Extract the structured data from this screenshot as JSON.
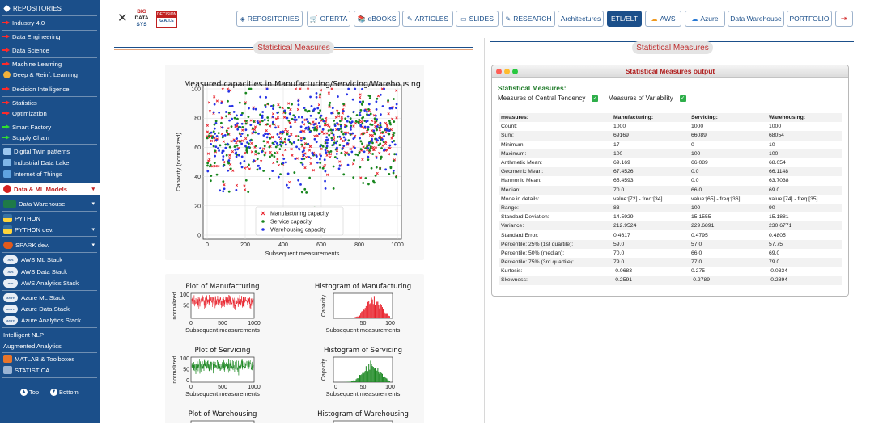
{
  "sidebar": {
    "header": "REPOSITORIES",
    "items": [
      {
        "label": "Industry 4.0",
        "icon": "red-arrow-icon"
      },
      {
        "label": "Data Engineering",
        "icon": "red-arrow-icon"
      },
      {
        "label": "Data Science",
        "icon": "red-arrow-icon"
      },
      {
        "label": "Machine Learning",
        "icon": "red-arrow-icon"
      },
      {
        "label": "Deep & Reinf. Learning",
        "icon": "brain-icon"
      },
      {
        "label": "Decision Intelligence",
        "icon": "red-arrow-icon"
      },
      {
        "label": "Statistics",
        "icon": "red-arrow-icon"
      },
      {
        "label": "Optimization",
        "icon": "red-arrow-icon"
      },
      {
        "label": "Smart Factory",
        "icon": "green-arrow-icon"
      },
      {
        "label": "Supply Chain",
        "icon": "green-arrow-icon"
      },
      {
        "label": "Digital Twin patterns",
        "icon": "twin-icon"
      },
      {
        "label": "Industrial Data Lake",
        "icon": "lake-icon"
      },
      {
        "label": "Internet of Things",
        "icon": "iot-icon"
      },
      {
        "label": "Data & ML Models",
        "icon": "models-icon"
      },
      {
        "label": "Data Warehouse",
        "icon": "warehouse-icon"
      },
      {
        "label": "PYTHON",
        "icon": "python-icon"
      },
      {
        "label": "PYTHON dev.",
        "icon": "python-icon"
      },
      {
        "label": "SPARK dev.",
        "icon": "spark-icon"
      },
      {
        "label": "AWS ML Stack",
        "icon": "aws-icon"
      },
      {
        "label": "AWS Data Stack",
        "icon": "aws-icon"
      },
      {
        "label": "AWS Analytics Stack",
        "icon": "aws-icon"
      },
      {
        "label": "Azure ML Stack",
        "icon": "azure-icon"
      },
      {
        "label": "Azure Data Stack",
        "icon": "azure-icon"
      },
      {
        "label": "Azure Analytics Stack",
        "icon": "azure-icon"
      },
      {
        "label": "Intelligent NLP",
        "icon": ""
      },
      {
        "label": "Augmented Analytics",
        "icon": ""
      },
      {
        "label": "MATLAB & Toolboxes",
        "icon": "matlab-icon"
      },
      {
        "label": "STATISTICA",
        "icon": "statistica-icon"
      }
    ],
    "top_label": "Top",
    "bottom_label": "Bottom",
    "aws_badge": "aws",
    "azure_badge": "azure"
  },
  "logo": {
    "big": "BIG",
    "data": "DATA",
    "sys": "SYS",
    "decision": "DECISION",
    "gate": "G.A.T.E"
  },
  "nav": [
    {
      "label": "REPOSITORIES",
      "icon": "diamond-icon"
    },
    {
      "label": "OFERTA",
      "icon": "cart-icon"
    },
    {
      "label": "eBOOKS",
      "icon": "book-icon"
    },
    {
      "label": "ARTICLES",
      "icon": "pen-icon"
    },
    {
      "label": "SLIDES",
      "icon": "screen-icon"
    },
    {
      "label": "RESEARCH",
      "icon": "pen-icon"
    },
    {
      "label": "Architectures",
      "icon": ""
    },
    {
      "label": "ETL/ELT",
      "icon": ""
    },
    {
      "label": "AWS",
      "icon": "aws-cloud-icon"
    },
    {
      "label": "Azure",
      "icon": "azure-cloud-icon"
    },
    {
      "label": "Data Warehouse",
      "icon": ""
    },
    {
      "label": "PORTFOLIO",
      "icon": ""
    },
    {
      "label": "",
      "icon": "logout-icon"
    }
  ],
  "section_title": "Statistical Measures",
  "output_title": "Statistical Measures output",
  "output": {
    "window_title": "Statistical Measures output",
    "heading": "Statistical Measures:",
    "cb1": "Measures of Central Tendency",
    "cb2": "Measures of Variability",
    "columns": [
      "measures:",
      "Manufacturing:",
      "Servicing:",
      "Warehousing:"
    ],
    "rows": [
      [
        "Count:",
        "1000",
        "1000",
        "1000"
      ],
      [
        "Sum:",
        "69169",
        "66089",
        "68054"
      ],
      [
        "Minimum:",
        "17",
        "0",
        "10"
      ],
      [
        "Maximum:",
        "100",
        "100",
        "100"
      ],
      [
        "Arithmetic Mean:",
        "69.169",
        "66.089",
        "68.054"
      ],
      [
        "Geometric Mean:",
        "67.4526",
        "0.0",
        "66.1148"
      ],
      [
        "Harmonic Mean:",
        "65.4593",
        "0.0",
        "63.7038"
      ],
      [
        "Median:",
        "70.0",
        "66.0",
        "69.0"
      ],
      [
        "Mode in details:",
        "value:[72] - freq:[34]",
        "value:[65] - freq:[36]",
        "value:[74] - freq:[35]"
      ],
      [
        "Range:",
        "83",
        "100",
        "90"
      ],
      [
        "Standard Deviation:",
        "14.5929",
        "15.1555",
        "15.1881"
      ],
      [
        "Variance:",
        "212.9524",
        "229.6891",
        "230.6771"
      ],
      [
        "Standard Error:",
        "0.4617",
        "0.4795",
        "0.4805"
      ],
      [
        "Percentile: 25% (1st quartile):",
        "59.0",
        "57.0",
        "57.75"
      ],
      [
        "Percentile: 50% (median):",
        "70.0",
        "66.0",
        "69.0"
      ],
      [
        "Percentile: 75% (3rd quartile):",
        "79.0",
        "77.0",
        "79.0"
      ],
      [
        "Kurtosis:",
        "-0.0683",
        "0.275",
        "-0.0334"
      ],
      [
        "Skewness:",
        "-0.2591",
        "-0.2789",
        "-0.2894"
      ]
    ]
  },
  "colors": {
    "sidebar": "#1b4f8a",
    "manufacturing": "#e8202a",
    "servicing": "#18861e",
    "warehousing": "#2632e6"
  },
  "chart_data": [
    {
      "type": "scatter",
      "title": "Measured capacities in Manufacturing/Servicing/Warehousing",
      "xlabel": "Subsequent measurements",
      "ylabel": "Capacity (normalized)",
      "xlim": [
        0,
        1000
      ],
      "ylim": [
        0,
        100
      ],
      "xticks": [
        "0",
        "200",
        "400",
        "600",
        "800",
        "1000"
      ],
      "yticks": [
        "0",
        "20",
        "40",
        "60",
        "80",
        "100"
      ],
      "legend_position": "lower-center",
      "series": [
        {
          "name": "Manufacturing capacity",
          "marker": "x",
          "count": 1000
        },
        {
          "name": "Service capacity",
          "marker": "dot",
          "count": 1000
        },
        {
          "name": "Warehousing capacity",
          "marker": "dot",
          "count": 1000
        }
      ],
      "grid": true
    },
    {
      "type": "line",
      "title": "Plot of Manufacturing",
      "xlabel": "Subsequent measurements",
      "ylabel": "normalized",
      "xticks": [
        "0",
        "500",
        "1000"
      ],
      "yticks": [
        "50",
        "100"
      ],
      "ylim": [
        0,
        100
      ]
    },
    {
      "type": "bar",
      "title": "Histogram of Manufacturing",
      "xlabel": "Subsequent measurements",
      "ylabel": "Capacity",
      "xticks": [
        "50",
        "100"
      ]
    },
    {
      "type": "line",
      "title": "Plot of Servicing",
      "xlabel": "Subsequent measurements",
      "ylabel": "normalized",
      "xticks": [
        "0",
        "500",
        "1000"
      ],
      "yticks": [
        "0",
        "50",
        "100"
      ],
      "ylim": [
        0,
        100
      ]
    },
    {
      "type": "bar",
      "title": "Histogram of Servicing",
      "xlabel": "Subsequent measurements",
      "ylabel": "Capacity",
      "xticks": [
        "0",
        "50",
        "100"
      ]
    },
    {
      "type": "line",
      "title": "Plot of Warehousing"
    },
    {
      "type": "bar",
      "title": "Histogram of Warehousing"
    }
  ]
}
